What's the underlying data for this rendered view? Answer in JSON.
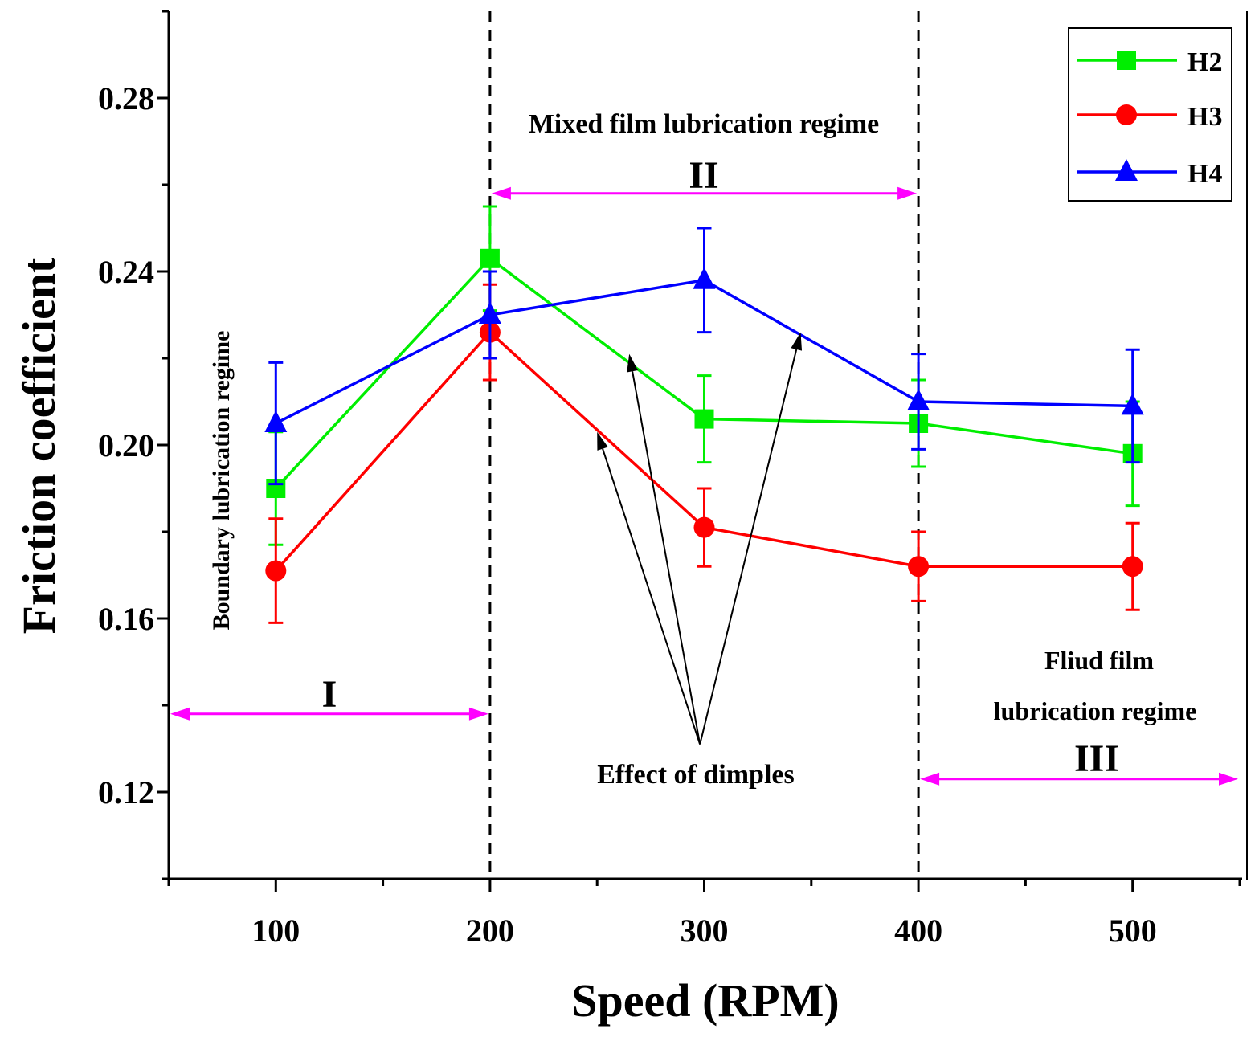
{
  "chart_data": {
    "type": "line",
    "xlabel": "Speed (RPM)",
    "ylabel": "Friction coefficient",
    "xlim": [
      50,
      550
    ],
    "ylim": [
      0.1,
      0.3
    ],
    "x_ticks": [
      100,
      200,
      300,
      400,
      500
    ],
    "x_minor_ticks": [
      50,
      150,
      250,
      350,
      450,
      550
    ],
    "y_ticks": [
      0.12,
      0.16,
      0.2,
      0.24,
      0.28
    ],
    "y_tick_labels": [
      "0.12",
      "0.16",
      "0.20",
      "0.24",
      "0.28"
    ],
    "y_minor_ticks": [
      0.1,
      0.14,
      0.18,
      0.22,
      0.26,
      0.3
    ],
    "x": [
      100,
      200,
      300,
      400,
      500
    ],
    "series": [
      {
        "name": "H2",
        "color": "#00ee00",
        "marker": "square",
        "values": [
          0.19,
          0.243,
          0.206,
          0.205,
          0.198
        ],
        "errors": [
          0.013,
          0.012,
          0.01,
          0.01,
          0.012
        ]
      },
      {
        "name": "H3",
        "color": "#ff0000",
        "marker": "circle",
        "values": [
          0.171,
          0.226,
          0.181,
          0.172,
          0.172
        ],
        "errors": [
          0.012,
          0.011,
          0.009,
          0.008,
          0.01
        ]
      },
      {
        "name": "H4",
        "color": "#0000ff",
        "marker": "triangle",
        "values": [
          0.205,
          0.23,
          0.238,
          0.21,
          0.209
        ],
        "errors": [
          0.014,
          0.01,
          0.012,
          0.011,
          0.013
        ]
      }
    ],
    "legend": {
      "position": "top-right",
      "entries": [
        "H2",
        "H3",
        "H4"
      ]
    },
    "regime_dividers": [
      200,
      400
    ],
    "regimes": [
      {
        "label": "I",
        "name": "Boundary lubrication regime",
        "from": 50,
        "to": 200,
        "y": 0.138
      },
      {
        "label": "II",
        "name": "Mixed film lubrication regime",
        "from": 200,
        "to": 400,
        "y": 0.258
      },
      {
        "label": "III",
        "name_line1": "Fliud film",
        "name_line2": "lubrication regime",
        "from": 400,
        "to": 550,
        "y": 0.123
      }
    ],
    "annotation": {
      "text": "Effect of dimples",
      "origin": {
        "x": 298,
        "y": 0.131
      },
      "arrow_targets": [
        {
          "x": 250,
          "y": 0.203
        },
        {
          "x": 265,
          "y": 0.221
        },
        {
          "x": 345,
          "y": 0.226
        }
      ]
    },
    "arrow_color": "#ff00ff"
  }
}
